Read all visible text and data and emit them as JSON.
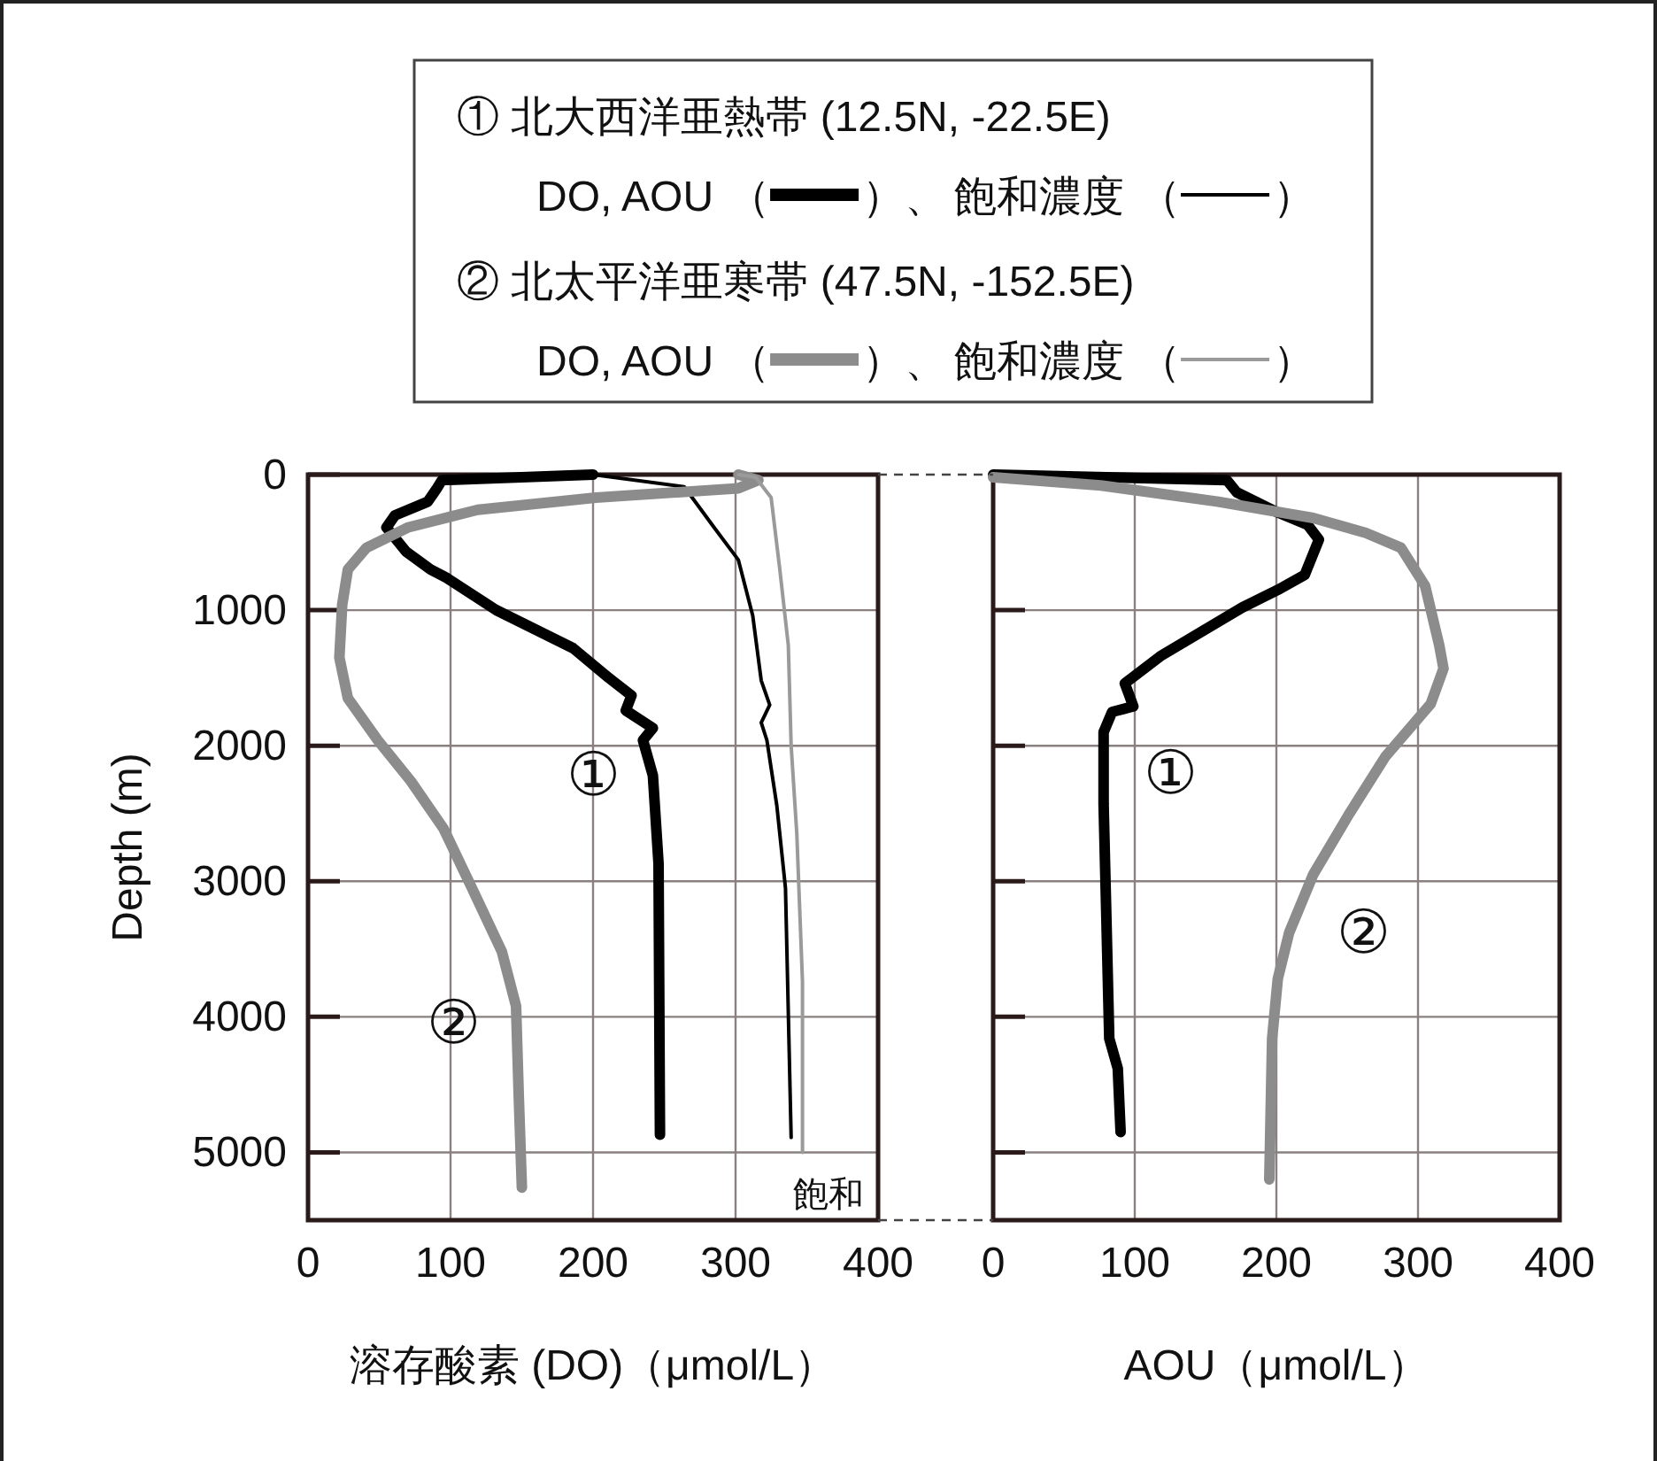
{
  "chart_data": [
    {
      "type": "line",
      "xlabel": "溶存酸素 (DO)（μmol/L）",
      "ylabel": "Depth (m)",
      "xlim": [
        0,
        400
      ],
      "xticks": [
        0,
        100,
        200,
        300,
        400
      ],
      "ylim": [
        5500,
        0
      ],
      "yticks": [
        0,
        1000,
        2000,
        3000,
        4000,
        5000
      ],
      "grid": true,
      "legend": "top",
      "annotations": [
        "① 北大西洋亜熱帯 (12.5N, -22.5E)",
        "② 北太平洋亜寒帯 (47.5N, -152.5E)",
        "（",
        "）、",
        "）",
        "飽和",
        "①",
        "②"
      ],
      "series": [
        {
          "name": "DO, AOU",
          "color": "#000000",
          "x": [
            200,
            94,
            90,
            84,
            61,
            55,
            69,
            86,
            97,
            132,
            186,
            211,
            227,
            223,
            242,
            235,
            242,
            246,
            247
          ],
          "values": [
            0,
            40,
            110,
            200,
            300,
            390,
            570,
            700,
            760,
            1000,
            1280,
            1500,
            1630,
            1740,
            1870,
            1960,
            2220,
            2870,
            4870
          ]
        },
        {
          "name": "飽和濃度",
          "color": "#000000",
          "x": [
            200,
            264,
            285,
            302,
            312,
            318,
            324,
            318,
            322,
            329,
            335,
            339
          ],
          "values": [
            0,
            90,
            390,
            630,
            1040,
            1520,
            1700,
            1830,
            1960,
            2440,
            3050,
            4890
          ]
        },
        {
          "name": "DO, AOU",
          "color": "#8c8c8c",
          "x": [
            302,
            316,
            302,
            202,
            119,
            70,
            41,
            28,
            24,
            22,
            28,
            49,
            72,
            95,
            115,
            136,
            146,
            148,
            150
          ],
          "values": [
            0,
            40,
            100,
            170,
            260,
            390,
            540,
            700,
            960,
            1350,
            1650,
            1960,
            2260,
            2610,
            3050,
            3520,
            3920,
            4610,
            5260
          ]
        },
        {
          "name": "飽和濃度",
          "color": "#9a9a9a",
          "x": [
            302,
            314,
            325,
            331,
            337,
            339,
            343,
            347,
            347
          ],
          "values": [
            0,
            20,
            170,
            700,
            1260,
            2000,
            2650,
            3740,
            5000
          ]
        }
      ]
    },
    {
      "type": "line",
      "xlabel": "AOU（μmol/L）",
      "xlim": [
        0,
        400
      ],
      "xticks": [
        0,
        100,
        200,
        300,
        400
      ],
      "ylim": [
        5500,
        0
      ],
      "yticks": [
        0,
        1000,
        2000,
        3000,
        4000,
        5000
      ],
      "grid": true,
      "tick_labels": "x",
      "annotations": [
        "①",
        "②"
      ],
      "series": [
        {
          "color": "#000000",
          "x": [
            0,
            165,
            172,
            201,
            222,
            230,
            220,
            201,
            176,
            118,
            93,
            99,
            84,
            78,
            78,
            80,
            82,
            88,
            90
          ],
          "values": [
            0,
            40,
            130,
            280,
            370,
            480,
            740,
            850,
            980,
            1340,
            1540,
            1710,
            1750,
            1900,
            2430,
            3290,
            4160,
            4380,
            4850
          ]
        },
        {
          "color": "#8c8c8c",
          "x": [
            0,
            76,
            159,
            226,
            263,
            288,
            305,
            315,
            318,
            309,
            277,
            251,
            226,
            209,
            201,
            197,
            195
          ],
          "values": [
            20,
            80,
            200,
            320,
            430,
            540,
            820,
            1260,
            1430,
            1690,
            2080,
            2510,
            2950,
            3380,
            3720,
            4160,
            5200
          ]
        }
      ]
    }
  ]
}
